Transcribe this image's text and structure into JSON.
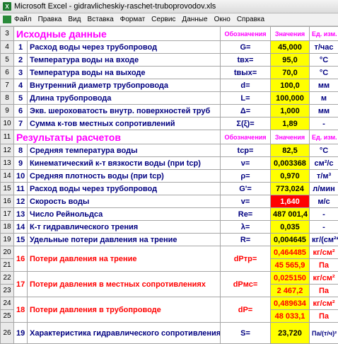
{
  "window": {
    "title": "Microsoft Excel - gidravlicheskiy-raschet-truboprovodov.xls",
    "app_icon": "X"
  },
  "menu": [
    "Файл",
    "Правка",
    "Вид",
    "Вставка",
    "Формат",
    "Сервис",
    "Данные",
    "Окно",
    "Справка"
  ],
  "input_header": {
    "row": "3",
    "title": "Исходные данные",
    "col_sym": "Обозначения",
    "col_val": "Значения",
    "col_unit": "Ед. изм."
  },
  "inputs": [
    {
      "row": "4",
      "n": "1",
      "param": "Расход воды через трубопровод",
      "sym": "G=",
      "val": "45,000",
      "unit": "т/час"
    },
    {
      "row": "5",
      "n": "2",
      "param": "Температура воды на входе",
      "sym": "tвх=",
      "val": "95,0",
      "unit": "°C"
    },
    {
      "row": "6",
      "n": "3",
      "param": "Температура воды на выходе",
      "sym": "tвых=",
      "val": "70,0",
      "unit": "°C"
    },
    {
      "row": "7",
      "n": "4",
      "param": "Внутренний диаметр трубопровода",
      "sym": "d=",
      "val": "100,0",
      "unit": "мм"
    },
    {
      "row": "8",
      "n": "5",
      "param": "Длина трубопровода",
      "sym": "L=",
      "val": "100,000",
      "unit": "м"
    },
    {
      "row": "9",
      "n": "6",
      "param": "Экв. шероховатость внутр. поверхностей труб",
      "sym": "Δ=",
      "val": "1,000",
      "unit": "мм"
    },
    {
      "row": "10",
      "n": "7",
      "param": "Сумма к-тов местных сопротивлений",
      "sym": "Σ(ξ)=",
      "val": "1,89",
      "unit": "-"
    }
  ],
  "results_header": {
    "row": "11",
    "title": "Результаты расчетов",
    "col_sym": "Обозначения",
    "col_val": "Значения",
    "col_unit": "Ед. изм."
  },
  "results": [
    {
      "row": "12",
      "n": "8",
      "param": "Средняя температура воды",
      "sym": "tср=",
      "val": "82,5",
      "unit": "°C",
      "style": "yellow"
    },
    {
      "row": "13",
      "n": "9",
      "param": "Кинематический к-т вязкости воды (при tср)",
      "sym": "ν=",
      "val": "0,003368",
      "unit": "см²/с",
      "style": "yellow"
    },
    {
      "row": "14",
      "n": "10",
      "param": "Средняя плотность воды (при tср)",
      "sym": "ρ=",
      "val": "0,970",
      "unit": "т/м³",
      "style": "yellow"
    },
    {
      "row": "15",
      "n": "11",
      "param": "Расход воды через трубопровод",
      "sym": "G'=",
      "val": "773,024",
      "unit": "л/мин",
      "style": "yellow"
    },
    {
      "row": "16",
      "n": "12",
      "param": "Скорость воды",
      "sym": "v=",
      "val": "1,640",
      "unit": "м/с",
      "style": "red"
    },
    {
      "row": "17",
      "n": "13",
      "param": "Число Рейнольдса",
      "sym": "Re=",
      "val": "487 001,4",
      "unit": "-",
      "style": "yellow"
    },
    {
      "row": "18",
      "n": "14",
      "param": "К-т гидравлического трения",
      "sym": "λ=",
      "val": "0,035",
      "unit": "-",
      "style": "yellow"
    },
    {
      "row": "19",
      "n": "15",
      "param": "Удельные потери давления на трение",
      "sym": "R=",
      "val": "0,004645",
      "unit": "кг/(см²*м)",
      "style": "yellow"
    }
  ],
  "losses": [
    {
      "rows": [
        "20",
        "21"
      ],
      "n": "16",
      "param": "Потери давления на трение",
      "sym": "dPтр=",
      "val1": "0,464485",
      "unit1": "кг/см²",
      "val2": "45 565,9",
      "unit2": "Па"
    },
    {
      "rows": [
        "22",
        "23"
      ],
      "n": "17",
      "param": "Потери давления в местных сопротивлениях",
      "sym": "dPмс=",
      "val1": "0,025150",
      "unit1": "кг/см²",
      "val2": "2 467,2",
      "unit2": "Па"
    },
    {
      "rows": [
        "24",
        "25"
      ],
      "n": "18",
      "param": "Потери давления в трубопроводе",
      "sym": "dP=",
      "val1": "0,489634",
      "unit1": "кг/см²",
      "val2": "48 033,1",
      "unit2": "Па"
    }
  ],
  "last": {
    "row": "26",
    "n": "19",
    "param": "Характеристика гидравлического сопротивления трубопровода",
    "sym": "S=",
    "val": "23,720",
    "unit": "Па/(т/ч)²"
  }
}
